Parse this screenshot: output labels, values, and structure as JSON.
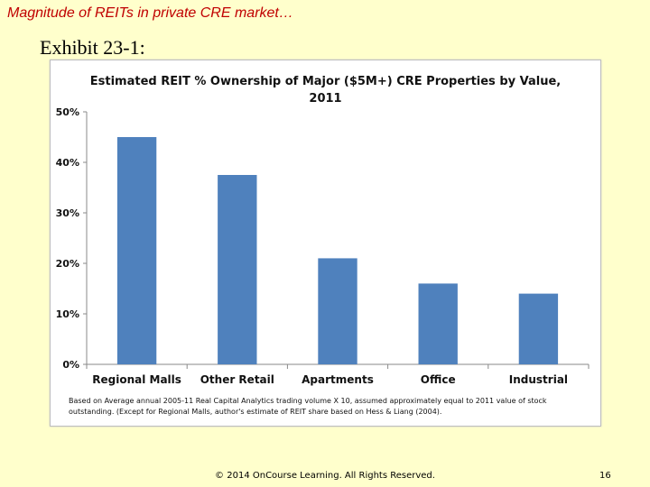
{
  "slide": {
    "title": "Magnitude of REITs in private CRE market…",
    "exhibit_label": "Exhibit 23-1:",
    "copyright": "© 2014 OnCourse Learning. All Rights Reserved.",
    "page_number": "16"
  },
  "chart_data": {
    "type": "bar",
    "title_line1": "Estimated REIT % Ownership of Major ($5M+) CRE Properties by Value,",
    "title_line2": "2011",
    "categories": [
      "Regional Malls",
      "Other Retail",
      "Apartments",
      "Office",
      "Industrial"
    ],
    "values": [
      0.45,
      0.375,
      0.21,
      0.16,
      0.14
    ],
    "ylim": [
      0,
      0.5
    ],
    "yticks": [
      0,
      0.1,
      0.2,
      0.3,
      0.4,
      0.5
    ],
    "ytick_labels": [
      "0%",
      "10%",
      "20%",
      "30%",
      "40%",
      "50%"
    ],
    "bar_color": "#4f81bd",
    "grid": false,
    "footnote_line1": "Based on Average annual 2005-11 Real Capital Analytics trading volume X 10, assumed approximately equal to 2011 value of stock",
    "footnote_line2": "outstanding. (Except for Regional Malls, author's estimate of REIT share based on Hess & Liang (2004)."
  }
}
